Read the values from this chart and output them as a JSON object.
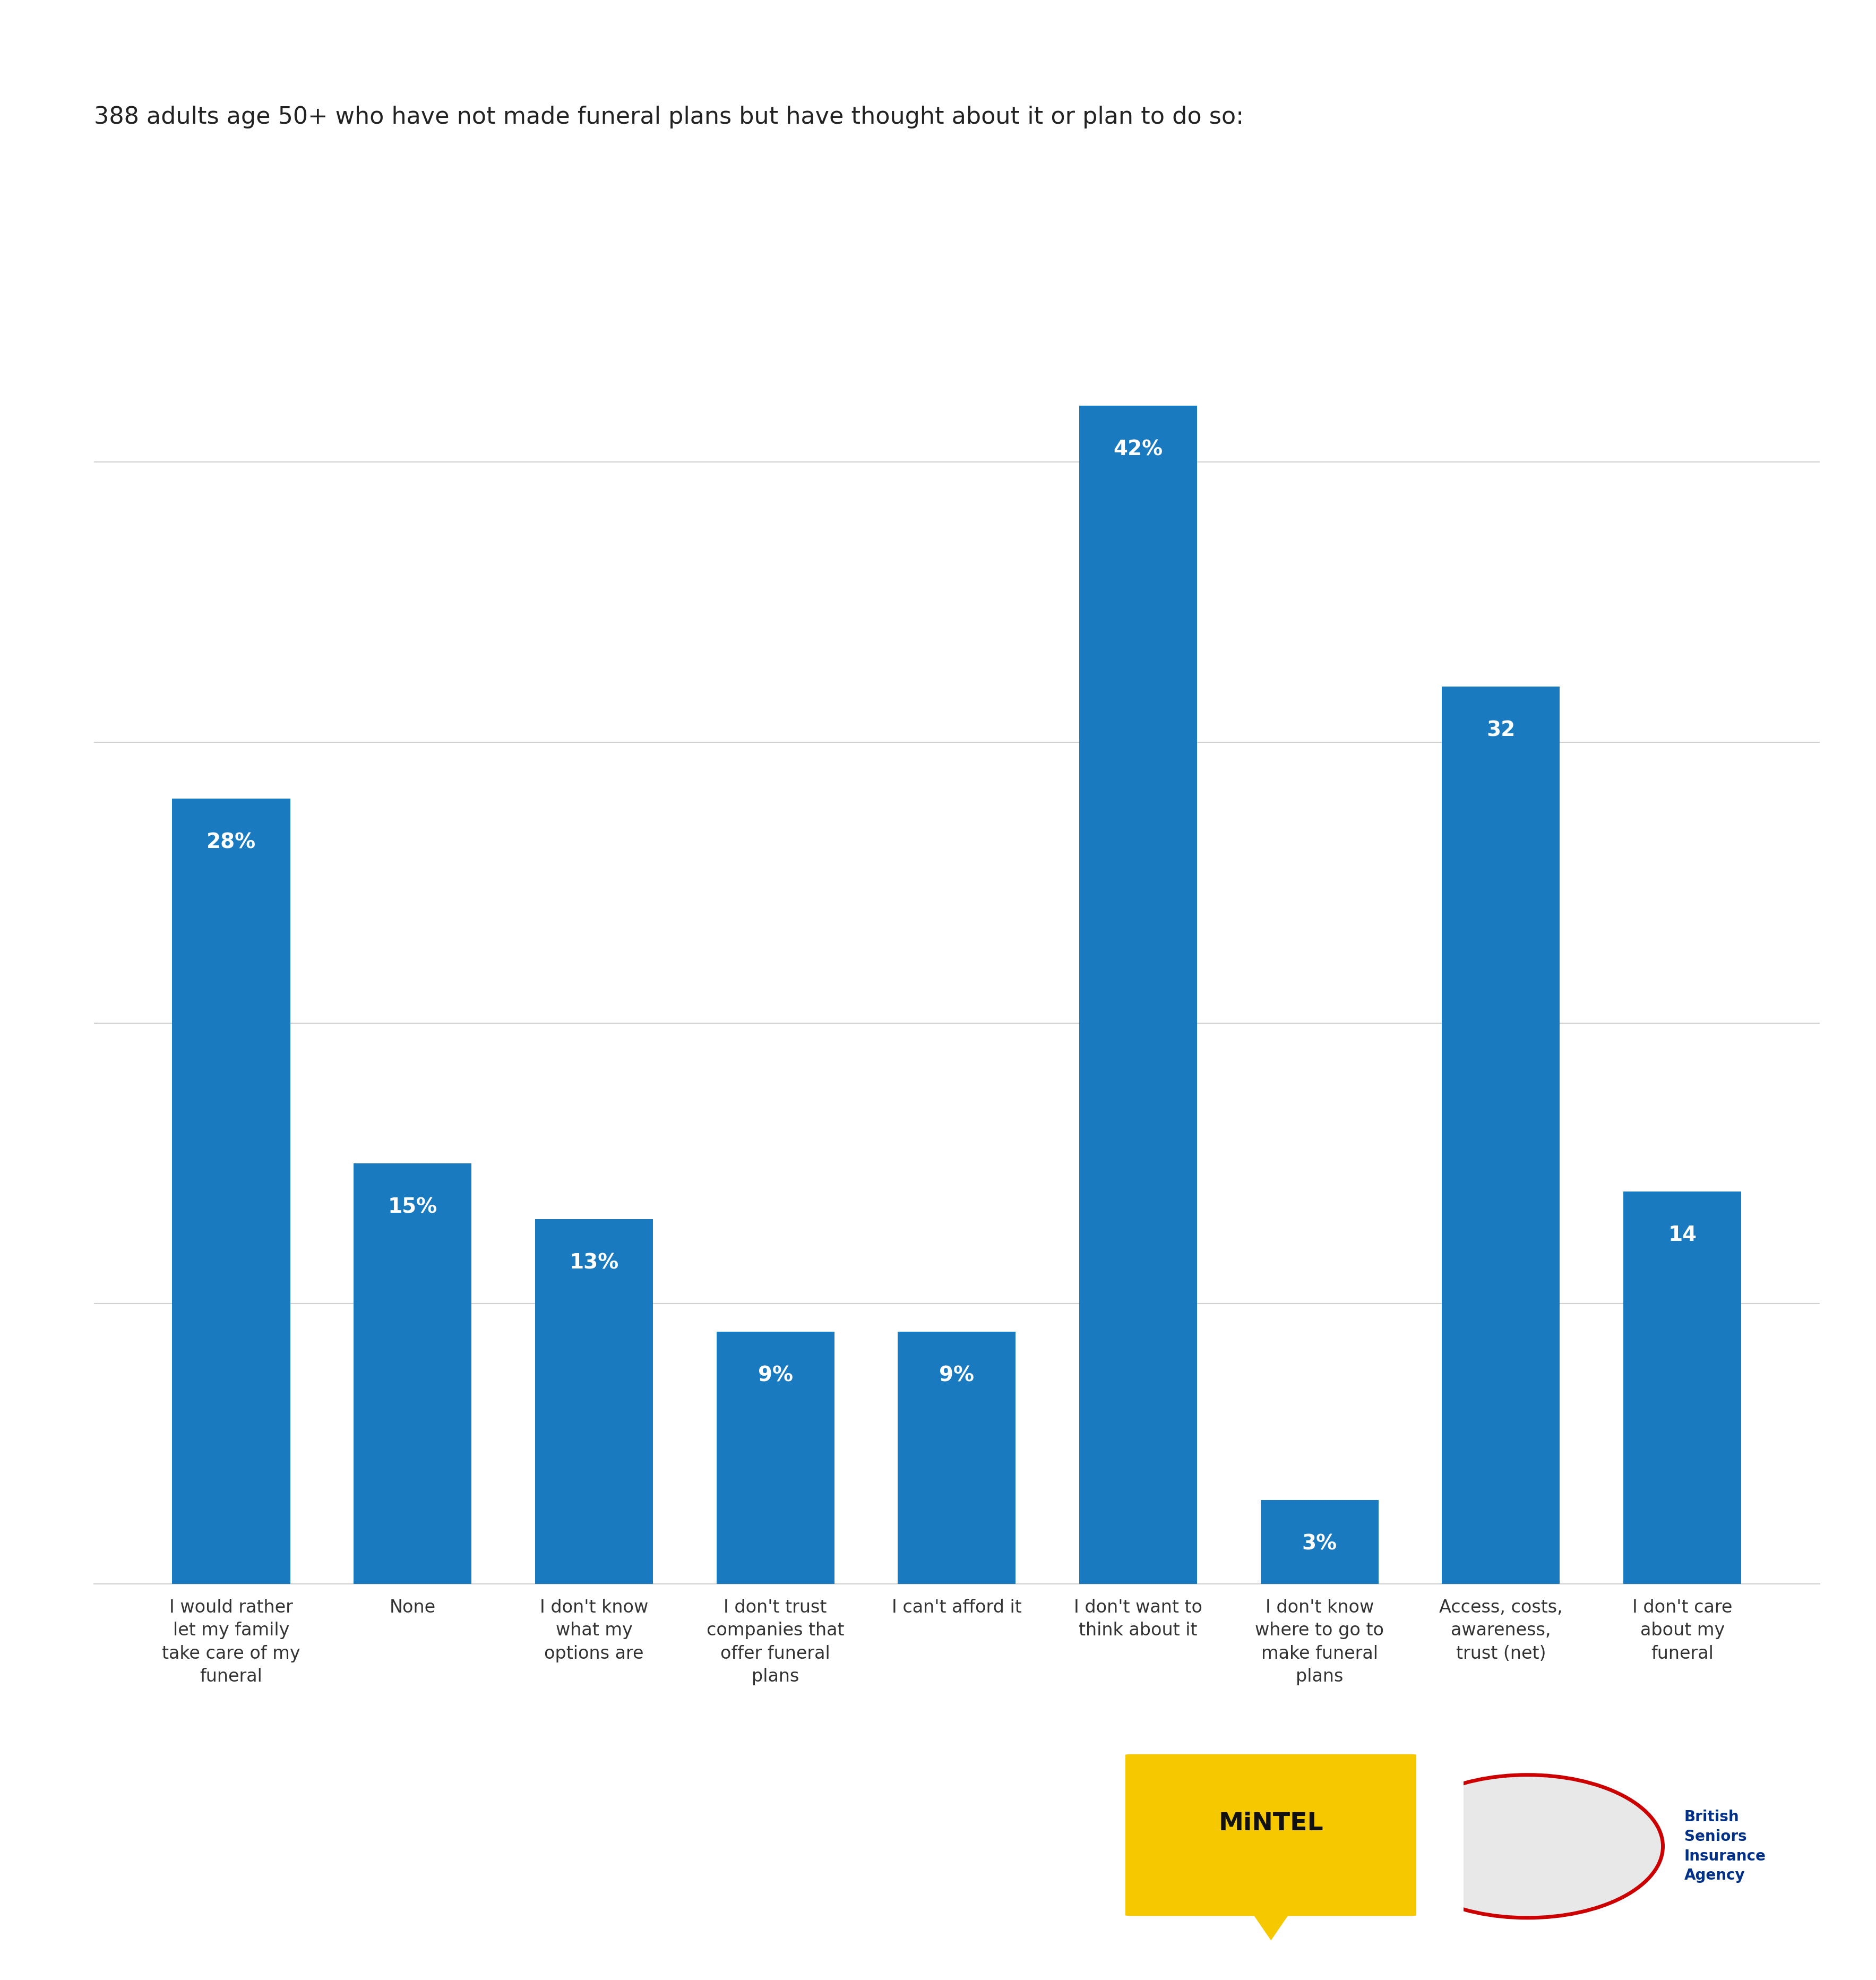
{
  "title": "388 adults age 50+ who have not made funeral plans but have thought about it or plan to do so:",
  "categories": [
    "I would rather\nlet my family\ntake care of my\nfuneral",
    "None",
    "I don't know\nwhat my\noptions are",
    "I don't trust\ncompanies that\noffer funeral\nplans",
    "I can't afford it",
    "I don't want to\nthink about it",
    "I don't know\nwhere to go to\nmake funeral\nplans",
    "Access, costs,\nawareness,\ntrust (net)",
    "I don't care\nabout my\nfuneral"
  ],
  "values": [
    28,
    15,
    13,
    9,
    9,
    42,
    3,
    32,
    14
  ],
  "bar_color": "#1a7abf",
  "bar_labels": [
    "28%",
    "15%",
    "13%",
    "9%",
    "9%",
    "42%",
    "3%",
    "32",
    "14"
  ],
  "background_color": "#ffffff",
  "title_fontsize": 32,
  "label_fontsize": 28,
  "tick_fontsize": 24,
  "ylim": [
    0,
    48
  ],
  "yticks": [
    0,
    10,
    20,
    30,
    40
  ],
  "grid_color": "#d0d0d0",
  "mintel_color": "#f5c800",
  "mintel_text": "MiNTEL",
  "bsia_text": "British\nSeniors\nInsurance\nAgency"
}
